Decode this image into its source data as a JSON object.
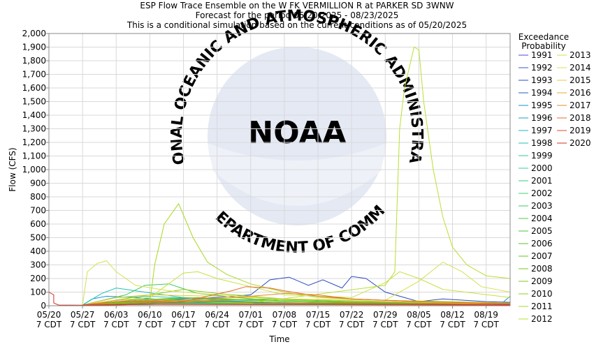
{
  "chart_data": {
    "type": "line",
    "title_lines": [
      "ESP Flow Trace Ensemble on the W FK VERMILLION R at PARKER SD 3WNW",
      "Forecast for the period 05/20/2025 - 08/23/2025",
      "This is a conditional simulation based on the current conditions as of 05/20/2025"
    ],
    "xlabel": "Time",
    "ylabel": "Flow (CFS)",
    "ylim": [
      0,
      2000
    ],
    "yticks": [
      "0",
      "100",
      "200",
      "300",
      "400",
      "500",
      "600",
      "700",
      "800",
      "900",
      "1,000",
      "1,100",
      "1,200",
      "1,300",
      "1,400",
      "1,500",
      "1,600",
      "1,700",
      "1,800",
      "1,900",
      "2,000"
    ],
    "xlim": [
      "05/20",
      "08/24"
    ],
    "xticks": [
      {
        "date": "05/20",
        "line2": "7 CDT"
      },
      {
        "date": "05/27",
        "line2": "7 CDT"
      },
      {
        "date": "06/03",
        "line2": "7 CDT"
      },
      {
        "date": "06/10",
        "line2": "7 CDT"
      },
      {
        "date": "06/17",
        "line2": "7 CDT"
      },
      {
        "date": "06/24",
        "line2": "7 CDT"
      },
      {
        "date": "07/01",
        "line2": "7 CDT"
      },
      {
        "date": "07/08",
        "line2": "7 CDT"
      },
      {
        "date": "07/15",
        "line2": "7 CDT"
      },
      {
        "date": "07/22",
        "line2": "7 CDT"
      },
      {
        "date": "07/29",
        "line2": "7 CDT"
      },
      {
        "date": "08/05",
        "line2": "7 CDT"
      },
      {
        "date": "08/12",
        "line2": "7 CDT"
      },
      {
        "date": "08/19",
        "line2": "7 CDT"
      }
    ],
    "grid": true,
    "legend": {
      "title_lines": [
        "Exceedance",
        "Probability"
      ],
      "placement": "right"
    },
    "series": [
      {
        "name": "1991",
        "color": "#4a4ad0",
        "points": [
          [
            "05/27",
            5
          ],
          [
            "06/10",
            15
          ],
          [
            "06/24",
            20
          ],
          [
            "07/08",
            15
          ],
          [
            "08/05",
            10
          ],
          [
            "08/19",
            8
          ],
          [
            "08/24",
            6
          ]
        ]
      },
      {
        "name": "1992",
        "color": "#3a5ac8",
        "points": [
          [
            "05/27",
            4
          ],
          [
            "06/05",
            10
          ],
          [
            "06/20",
            12
          ],
          [
            "07/05",
            10
          ],
          [
            "07/30",
            8
          ],
          [
            "08/24",
            6
          ]
        ]
      },
      {
        "name": "1993",
        "color": "#2a4cc0",
        "points": [
          [
            "05/27",
            5
          ],
          [
            "06/10",
            40
          ],
          [
            "06/24",
            60
          ],
          [
            "07/01",
            80
          ],
          [
            "07/05",
            190
          ],
          [
            "07/09",
            210
          ],
          [
            "07/13",
            150
          ],
          [
            "07/16",
            190
          ],
          [
            "07/20",
            130
          ],
          [
            "07/22",
            215
          ],
          [
            "07/25",
            200
          ],
          [
            "07/29",
            100
          ],
          [
            "08/05",
            30
          ],
          [
            "08/10",
            50
          ],
          [
            "08/19",
            30
          ],
          [
            "08/24",
            25
          ]
        ]
      },
      {
        "name": "1994",
        "color": "#2060c0",
        "points": [
          [
            "05/27",
            3
          ],
          [
            "06/10",
            10
          ],
          [
            "06/24",
            15
          ],
          [
            "07/08",
            12
          ],
          [
            "08/05",
            10
          ],
          [
            "08/24",
            8
          ]
        ]
      },
      {
        "name": "1995",
        "color": "#1890d0",
        "points": [
          [
            "05/27",
            5
          ],
          [
            "05/29",
            50
          ],
          [
            "06/01",
            70
          ],
          [
            "06/07",
            60
          ],
          [
            "06/14",
            40
          ],
          [
            "06/24",
            25
          ],
          [
            "07/08",
            15
          ],
          [
            "08/05",
            10
          ],
          [
            "08/22",
            10
          ],
          [
            "08/24",
            70
          ]
        ]
      },
      {
        "name": "1996",
        "color": "#18a0c8",
        "points": [
          [
            "05/27",
            5
          ],
          [
            "06/03",
            30
          ],
          [
            "06/17",
            25
          ],
          [
            "07/01",
            20
          ],
          [
            "07/22",
            12
          ],
          [
            "08/24",
            8
          ]
        ]
      },
      {
        "name": "1997",
        "color": "#20b0c0",
        "points": [
          [
            "05/27",
            4
          ],
          [
            "06/03",
            20
          ],
          [
            "06/17",
            30
          ],
          [
            "07/01",
            25
          ],
          [
            "07/22",
            15
          ],
          [
            "08/24",
            10
          ]
        ]
      },
      {
        "name": "1998",
        "color": "#20c0b0",
        "points": [
          [
            "05/27",
            5
          ],
          [
            "05/31",
            90
          ],
          [
            "06/03",
            130
          ],
          [
            "06/07",
            110
          ],
          [
            "06/17",
            60
          ],
          [
            "06/24",
            40
          ],
          [
            "07/08",
            20
          ],
          [
            "08/24",
            10
          ]
        ]
      },
      {
        "name": "1999",
        "color": "#30c8a0",
        "points": [
          [
            "05/27",
            5
          ],
          [
            "06/03",
            60
          ],
          [
            "06/10",
            70
          ],
          [
            "06/20",
            50
          ],
          [
            "07/08",
            30
          ],
          [
            "08/05",
            15
          ],
          [
            "08/24",
            10
          ]
        ]
      },
      {
        "name": "2000",
        "color": "#30d090",
        "points": [
          [
            "05/27",
            3
          ],
          [
            "06/10",
            15
          ],
          [
            "06/24",
            20
          ],
          [
            "07/08",
            15
          ],
          [
            "08/24",
            8
          ]
        ]
      },
      {
        "name": "2001",
        "color": "#30d080",
        "points": [
          [
            "05/27",
            5
          ],
          [
            "06/03",
            40
          ],
          [
            "06/10",
            50
          ],
          [
            "06/24",
            35
          ],
          [
            "07/08",
            20
          ],
          [
            "08/24",
            10
          ]
        ]
      },
      {
        "name": "2002",
        "color": "#40d070",
        "points": [
          [
            "05/27",
            4
          ],
          [
            "06/03",
            25
          ],
          [
            "06/17",
            20
          ],
          [
            "07/01",
            15
          ],
          [
            "08/24",
            8
          ]
        ]
      },
      {
        "name": "2003",
        "color": "#40c860",
        "points": [
          [
            "05/27",
            5
          ],
          [
            "06/05",
            80
          ],
          [
            "06/09",
            150
          ],
          [
            "06/14",
            160
          ],
          [
            "06/20",
            90
          ],
          [
            "06/28",
            60
          ],
          [
            "07/08",
            30
          ],
          [
            "08/24",
            12
          ]
        ]
      },
      {
        "name": "2004",
        "color": "#50c850",
        "points": [
          [
            "05/27",
            4
          ],
          [
            "06/03",
            20
          ],
          [
            "06/24",
            40
          ],
          [
            "07/05",
            50
          ],
          [
            "07/22",
            30
          ],
          [
            "08/24",
            12
          ]
        ]
      },
      {
        "name": "2005",
        "color": "#50c040",
        "points": [
          [
            "05/27",
            5
          ],
          [
            "06/03",
            30
          ],
          [
            "06/17",
            60
          ],
          [
            "06/24",
            50
          ],
          [
            "07/08",
            30
          ],
          [
            "08/24",
            10
          ]
        ]
      },
      {
        "name": "2006",
        "color": "#60c030",
        "points": [
          [
            "05/27",
            3
          ],
          [
            "06/10",
            10
          ],
          [
            "06/24",
            15
          ],
          [
            "07/22",
            10
          ],
          [
            "08/24",
            6
          ]
        ]
      },
      {
        "name": "2007",
        "color": "#68c028",
        "points": [
          [
            "05/27",
            4
          ],
          [
            "06/10",
            25
          ],
          [
            "06/24",
            30
          ],
          [
            "07/08",
            20
          ],
          [
            "08/24",
            8
          ]
        ]
      },
      {
        "name": "2008",
        "color": "#70c820",
        "points": [
          [
            "05/27",
            5
          ],
          [
            "06/10",
            40
          ],
          [
            "06/20",
            60
          ],
          [
            "07/01",
            40
          ],
          [
            "07/15",
            25
          ],
          [
            "08/24",
            10
          ]
        ]
      },
      {
        "name": "2009",
        "color": "#80c818",
        "points": [
          [
            "05/27",
            5
          ],
          [
            "06/10",
            30
          ],
          [
            "06/24",
            50
          ],
          [
            "07/08",
            40
          ],
          [
            "07/29",
            20
          ],
          [
            "08/24",
            10
          ]
        ]
      },
      {
        "name": "2010",
        "color": "#90d018",
        "points": [
          [
            "05/27",
            4
          ],
          [
            "06/10",
            80
          ],
          [
            "06/17",
            120
          ],
          [
            "06/24",
            90
          ],
          [
            "07/08",
            50
          ],
          [
            "08/05",
            25
          ],
          [
            "08/24",
            12
          ]
        ]
      },
      {
        "name": "2011",
        "color": "#a8d820",
        "points": [
          [
            "05/27",
            5
          ],
          [
            "06/10",
            20
          ],
          [
            "06/11",
            300
          ],
          [
            "06/13",
            600
          ],
          [
            "06/16",
            750
          ],
          [
            "06/19",
            500
          ],
          [
            "06/22",
            320
          ],
          [
            "06/26",
            230
          ],
          [
            "07/01",
            160
          ],
          [
            "07/08",
            100
          ],
          [
            "07/15",
            60
          ],
          [
            "07/29",
            40
          ],
          [
            "08/24",
            20
          ]
        ]
      },
      {
        "name": "2012",
        "color": "#b8e030",
        "points": [
          [
            "05/27",
            4
          ],
          [
            "06/10",
            20
          ],
          [
            "06/17",
            30
          ],
          [
            "07/01",
            20
          ],
          [
            "07/29",
            150
          ],
          [
            "07/31",
            250
          ],
          [
            "08/01",
            1300
          ],
          [
            "08/02",
            1600
          ],
          [
            "08/04",
            1900
          ],
          [
            "08/05",
            1880
          ],
          [
            "08/06",
            1500
          ],
          [
            "08/08",
            1000
          ],
          [
            "08/10",
            650
          ],
          [
            "08/12",
            430
          ],
          [
            "08/15",
            300
          ],
          [
            "08/19",
            220
          ],
          [
            "08/24",
            200
          ]
        ]
      },
      {
        "name": "2013",
        "color": "#c8e040",
        "points": [
          [
            "05/27",
            5
          ],
          [
            "06/03",
            40
          ],
          [
            "06/10",
            60
          ],
          [
            "06/17",
            240
          ],
          [
            "06/20",
            250
          ],
          [
            "06/24",
            200
          ],
          [
            "07/01",
            140
          ],
          [
            "07/08",
            80
          ],
          [
            "07/22",
            60
          ],
          [
            "07/29",
            170
          ],
          [
            "08/01",
            250
          ],
          [
            "08/05",
            200
          ],
          [
            "08/10",
            120
          ],
          [
            "08/24",
            60
          ]
        ]
      },
      {
        "name": "2014",
        "color": "#d8e050",
        "points": [
          [
            "05/26",
            0
          ],
          [
            "05/27",
            5
          ],
          [
            "05/28",
            250
          ],
          [
            "05/30",
            310
          ],
          [
            "06/01",
            330
          ],
          [
            "06/03",
            250
          ],
          [
            "06/07",
            150
          ],
          [
            "06/14",
            110
          ],
          [
            "06/24",
            80
          ],
          [
            "07/08",
            50
          ],
          [
            "07/29",
            40
          ],
          [
            "08/05",
            180
          ],
          [
            "08/10",
            320
          ],
          [
            "08/14",
            250
          ],
          [
            "08/18",
            140
          ],
          [
            "08/24",
            100
          ]
        ]
      },
      {
        "name": "2015",
        "color": "#e8c840",
        "points": [
          [
            "05/27",
            4
          ],
          [
            "06/03",
            60
          ],
          [
            "06/10",
            80
          ],
          [
            "06/24",
            70
          ],
          [
            "07/08",
            50
          ],
          [
            "08/05",
            25
          ],
          [
            "08/24",
            12
          ]
        ]
      },
      {
        "name": "2016",
        "color": "#e8a830",
        "points": [
          [
            "05/27",
            5
          ],
          [
            "06/03",
            40
          ],
          [
            "06/10",
            45
          ],
          [
            "06/20",
            35
          ],
          [
            "07/08",
            20
          ],
          [
            "08/24",
            10
          ]
        ]
      },
      {
        "name": "2017",
        "color": "#e88828",
        "points": [
          [
            "05/27",
            4
          ],
          [
            "06/03",
            30
          ],
          [
            "06/17",
            40
          ],
          [
            "06/28",
            60
          ],
          [
            "07/08",
            90
          ],
          [
            "07/15",
            80
          ],
          [
            "07/22",
            50
          ],
          [
            "08/05",
            30
          ],
          [
            "08/24",
            15
          ]
        ]
      },
      {
        "name": "2018",
        "color": "#e86828",
        "points": [
          [
            "05/27",
            5
          ],
          [
            "06/03",
            30
          ],
          [
            "06/17",
            30
          ],
          [
            "06/27",
            110
          ],
          [
            "06/30",
            140
          ],
          [
            "07/05",
            130
          ],
          [
            "07/08",
            110
          ],
          [
            "07/15",
            70
          ],
          [
            "07/22",
            50
          ],
          [
            "08/05",
            30
          ],
          [
            "08/24",
            15
          ]
        ]
      },
      {
        "name": "2019",
        "color": "#e04828",
        "points": [
          [
            "05/27",
            4
          ],
          [
            "06/10",
            20
          ],
          [
            "06/24",
            30
          ],
          [
            "07/08",
            20
          ],
          [
            "08/24",
            10
          ]
        ]
      },
      {
        "name": "2020",
        "color": "#d03020",
        "points": [
          [
            "05/20",
            100
          ],
          [
            "05/21",
            80
          ],
          [
            "05/21",
            20
          ],
          [
            "05/22",
            5
          ],
          [
            "05/27",
            4
          ],
          [
            "06/10",
            10
          ],
          [
            "07/08",
            8
          ],
          [
            "08/24",
            5
          ]
        ]
      }
    ]
  },
  "watermark": {
    "arc_top": "NATIONAL OCEANIC AND ATMOSPHERIC ADMINISTRATION",
    "arc_bottom": "U.S. DEPARTMENT OF COMMERCE",
    "logo_text": "NOAA"
  }
}
